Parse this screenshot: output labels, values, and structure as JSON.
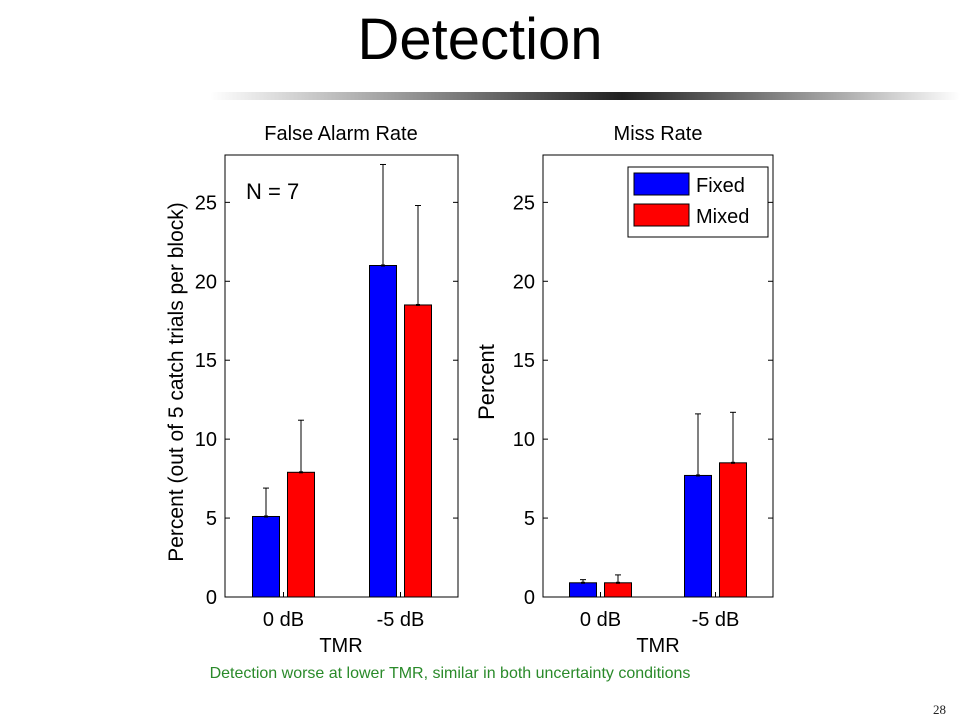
{
  "slide": {
    "title": "Detection",
    "caption": "Detection worse at lower TMR, similar in both uncertainty conditions",
    "page_number": "28"
  },
  "colors": {
    "fixed": "#0000ff",
    "mixed": "#ff0000",
    "caption": "#2a8a2a"
  },
  "chart_data": [
    {
      "type": "bar",
      "title": "False Alarm Rate",
      "xlabel": "TMR",
      "ylabel": "Percent (out of 5 catch trials per block)",
      "categories": [
        "0 dB",
        "-5 dB"
      ],
      "ylim": [
        0,
        28
      ],
      "yticks": [
        0,
        5,
        10,
        15,
        20,
        25
      ],
      "annotation": "N = 7",
      "legend": null,
      "series": [
        {
          "name": "Fixed",
          "color": "#0000ff",
          "values": [
            5.1,
            21.0
          ],
          "error": [
            1.8,
            6.4
          ]
        },
        {
          "name": "Mixed",
          "color": "#ff0000",
          "values": [
            7.9,
            18.5
          ],
          "error": [
            3.3,
            6.3
          ]
        }
      ]
    },
    {
      "type": "bar",
      "title": "Miss Rate",
      "xlabel": "TMR",
      "ylabel": "Percent",
      "categories": [
        "0 dB",
        "-5 dB"
      ],
      "ylim": [
        0,
        28
      ],
      "yticks": [
        0,
        5,
        10,
        15,
        20,
        25
      ],
      "annotation": "",
      "legend": "top-right",
      "series": [
        {
          "name": "Fixed",
          "color": "#0000ff",
          "values": [
            0.9,
            7.7
          ],
          "error": [
            0.2,
            3.9
          ]
        },
        {
          "name": "Mixed",
          "color": "#ff0000",
          "values": [
            0.9,
            8.5
          ],
          "error": [
            0.5,
            3.2
          ]
        }
      ]
    }
  ]
}
